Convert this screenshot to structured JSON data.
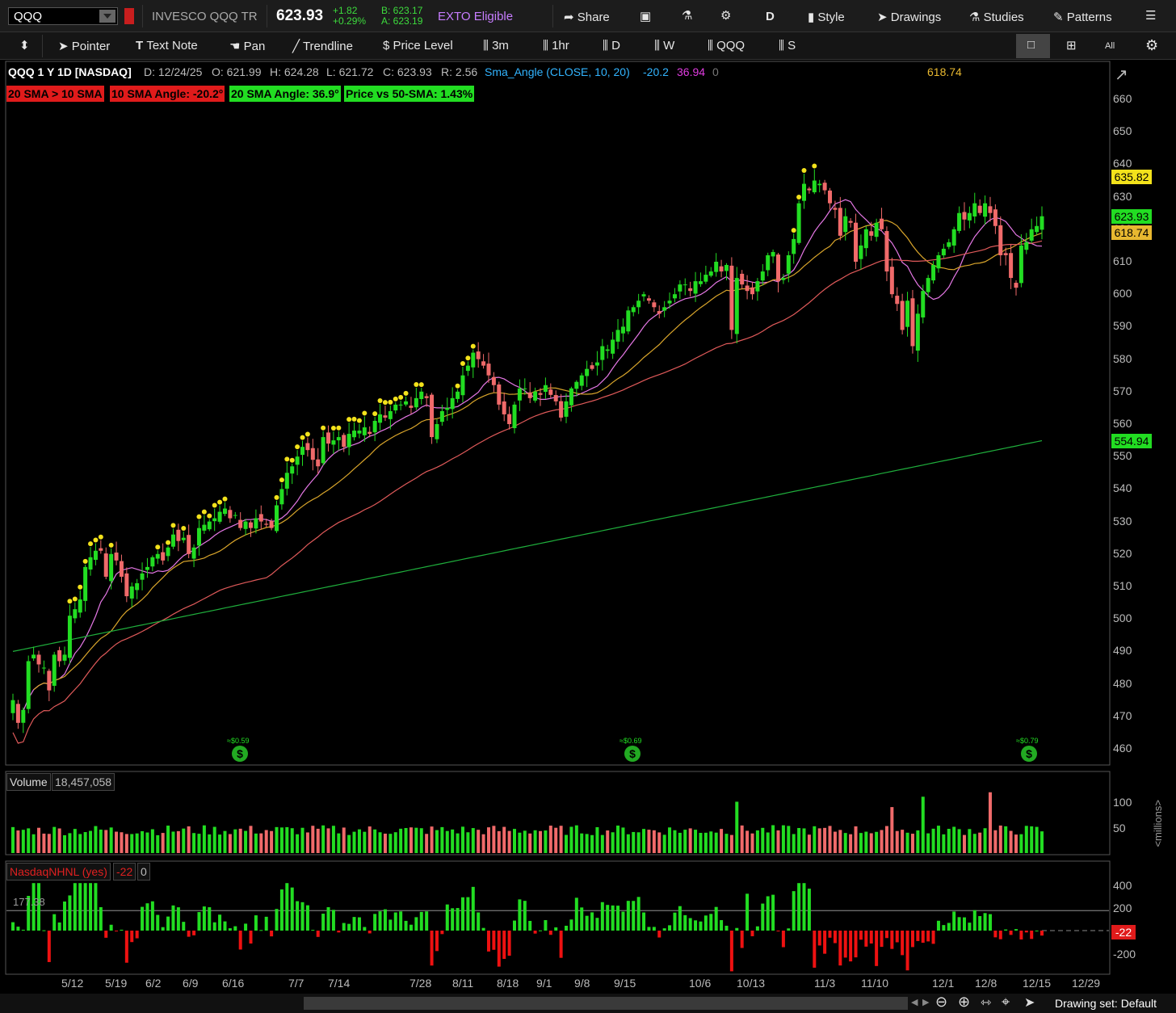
{
  "topbar": {
    "symbol": "QQQ",
    "name": "INVESCO QQQ TR",
    "last": "623.93",
    "change": "+1.82",
    "change_pct": "+0.29%",
    "bid": "B: 623.17",
    "ask": "A: 623.19",
    "exto": "EXTO Eligible",
    "share": "Share",
    "d": "D",
    "style": "Style",
    "drawings": "Drawings",
    "studies": "Studies",
    "patterns": "Patterns"
  },
  "toolbar": {
    "pointer": "Pointer",
    "text_note": "Text Note",
    "pan": "Pan",
    "trendline": "Trendline",
    "price_level": "Price Level",
    "t3m": "3m",
    "t1hr": "1hr",
    "td": "D",
    "tw": "W",
    "tqqq": "QQQ",
    "ts": "S",
    "all": "All"
  },
  "info": {
    "title": "QQQ 1 Y 1D [NASDAQ]",
    "d": "D: 12/24/25",
    "o": "O: 621.99",
    "h": "H: 624.28",
    "l": "L: 621.72",
    "c": "C: 623.93",
    "r": "R: 2.56",
    "study": "Sma_Angle (CLOSE, 10, 20)",
    "v1": "-20.2",
    "v2": "36.94",
    "v3": "0",
    "v4": "618.74"
  },
  "status": {
    "s1": "20 SMA > 10 SMA",
    "s2": "10 SMA Angle: -20.2°",
    "s3": "20 SMA Angle: 36.9°",
    "s4": "Price vs 50-SMA: 1.43%"
  },
  "price_labels": {
    "l1": "635.82",
    "l2": "623.93",
    "l3": "618.74",
    "l4": "554.94"
  },
  "dividends": [
    "≈$0.59",
    "≈$0.69",
    "≈$0.79"
  ],
  "volume": {
    "title": "Volume",
    "value": "18,457,058",
    "unit": "<millions>"
  },
  "nhnl": {
    "title": "NasdaqNHNL (yes)",
    "value": "-22",
    "zero": "0",
    "level": "177.38",
    "last": "-22"
  },
  "footer": {
    "drawing_set": "Drawing set: Default"
  },
  "colors": {
    "up": "#22dd22",
    "down": "#f06a6a",
    "sma10": "#e678e6",
    "sma20": "#d9a52b",
    "sma50": "#e05a5a",
    "sma200": "#1fae3c"
  },
  "chart_data": [
    {
      "type": "candlestick",
      "title": "QQQ 1 Y 1D [NASDAQ]",
      "y_ticks": [
        460,
        470,
        480,
        490,
        500,
        510,
        520,
        530,
        540,
        550,
        560,
        570,
        580,
        590,
        600,
        610,
        620,
        630,
        640,
        650,
        660
      ],
      "x_tick_labels": [
        "5/12",
        "5/19",
        "6/2",
        "6/9",
        "6/16",
        "7/7",
        "7/14",
        "7/28",
        "8/11",
        "8/18",
        "9/1",
        "9/8",
        "9/15",
        "10/6",
        "10/13",
        "11/3",
        "11/10",
        "12/1",
        "12/8",
        "12/15",
        "12/29"
      ],
      "series": [
        {
          "name": "SMA 10",
          "values": []
        },
        {
          "name": "SMA 20",
          "values": []
        },
        {
          "name": "SMA 50",
          "values": []
        },
        {
          "name": "SMA 200",
          "values": []
        }
      ],
      "closes": [
        475,
        468,
        472,
        487,
        489,
        486,
        485,
        478,
        489,
        487,
        489,
        501,
        503,
        506,
        516,
        519,
        521,
        521,
        513,
        520,
        518,
        513,
        507,
        510,
        511,
        514,
        516,
        519,
        520,
        518,
        522,
        526,
        524,
        525,
        520,
        522,
        528,
        529,
        530,
        531,
        533,
        534,
        531,
        532,
        528,
        530,
        528,
        531,
        530,
        529,
        528,
        535,
        540,
        545,
        547,
        550,
        553,
        552,
        549,
        547,
        556,
        554,
        555,
        556,
        553,
        557,
        558,
        558,
        559,
        557,
        561,
        563,
        562,
        564,
        566,
        566,
        567,
        565,
        568,
        570,
        568,
        556,
        560,
        564,
        565,
        568,
        570,
        575,
        578,
        582,
        580,
        578,
        575,
        572,
        566,
        563,
        560,
        566,
        571,
        571,
        568,
        570,
        569,
        572,
        569,
        567,
        562,
        567,
        571,
        573,
        575,
        577,
        577,
        579,
        584,
        583,
        586,
        589,
        590,
        595,
        596,
        598,
        600,
        598,
        596,
        594,
        596,
        598,
        600,
        603,
        603,
        601,
        604,
        604,
        606,
        607,
        610,
        607,
        609,
        589,
        605,
        603,
        601,
        600,
        604,
        607,
        612,
        613,
        604,
        605,
        612,
        617,
        628,
        634,
        632,
        635,
        634,
        632,
        628,
        626,
        618,
        624,
        622,
        610,
        615,
        620,
        618,
        622,
        620,
        607,
        600,
        597,
        589,
        598,
        584,
        594,
        601,
        605,
        609,
        612,
        614,
        616,
        620,
        625,
        623,
        625,
        628,
        625,
        628,
        625,
        621,
        612,
        612,
        605,
        602,
        615,
        616,
        620,
        621,
        624
      ]
    },
    {
      "type": "bar",
      "title": "Volume",
      "unit": "millions",
      "y_ticks": [
        50,
        100
      ]
    },
    {
      "type": "bar",
      "title": "NasdaqNHNL (yes)",
      "y_ticks": [
        -200,
        200,
        400
      ],
      "reference_level": 177.38,
      "last": -22
    }
  ]
}
